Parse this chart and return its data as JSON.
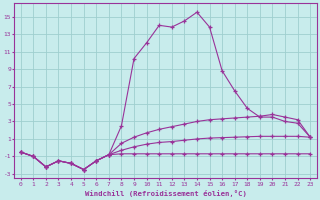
{
  "background_color": "#c8ecec",
  "grid_color": "#9fcfcf",
  "line_color": "#993399",
  "xlabel": "Windchill (Refroidissement éolien,°C)",
  "xlim": [
    -0.5,
    23.5
  ],
  "ylim": [
    -3.5,
    16.5
  ],
  "xticks": [
    0,
    1,
    2,
    3,
    4,
    5,
    6,
    7,
    8,
    9,
    10,
    11,
    12,
    13,
    14,
    15,
    16,
    17,
    18,
    19,
    20,
    21,
    22,
    23
  ],
  "yticks": [
    -3,
    -1,
    1,
    3,
    5,
    7,
    9,
    11,
    13,
    15
  ],
  "spike_x": [
    0,
    1,
    2,
    3,
    4,
    5,
    6,
    7,
    8,
    9,
    10,
    11,
    12,
    13,
    14,
    15,
    16,
    17,
    18,
    19,
    20,
    21,
    22,
    23
  ],
  "spike_y": [
    -0.5,
    -1.0,
    -2.2,
    -1.5,
    -1.8,
    -2.5,
    -1.5,
    -0.8,
    2.5,
    10.2,
    12.0,
    14.0,
    13.8,
    14.5,
    15.5,
    13.8,
    8.8,
    6.5,
    4.5,
    3.5,
    3.5,
    3.0,
    2.8,
    1.2
  ],
  "flat_y": [
    -0.5,
    -1.0,
    -2.2,
    -1.5,
    -1.8,
    -2.5,
    -1.5,
    -0.8,
    -0.7,
    -0.7,
    -0.7,
    -0.7,
    -0.7,
    -0.7,
    -0.7,
    -0.7,
    -0.7,
    -0.7,
    -0.7,
    -0.7,
    -0.7,
    -0.7,
    -0.7,
    -0.7
  ],
  "rise1_y": [
    -0.5,
    -1.0,
    -2.2,
    -1.5,
    -1.8,
    -2.5,
    -1.5,
    -0.8,
    -0.3,
    0.1,
    0.4,
    0.6,
    0.7,
    0.85,
    1.0,
    1.1,
    1.15,
    1.2,
    1.25,
    1.3,
    1.3,
    1.3,
    1.3,
    1.2
  ],
  "rise2_y": [
    -0.5,
    -1.0,
    -2.2,
    -1.5,
    -1.8,
    -2.5,
    -1.5,
    -0.8,
    0.5,
    1.2,
    1.7,
    2.1,
    2.4,
    2.7,
    3.0,
    3.2,
    3.3,
    3.4,
    3.5,
    3.6,
    3.8,
    3.5,
    3.2,
    1.2
  ]
}
